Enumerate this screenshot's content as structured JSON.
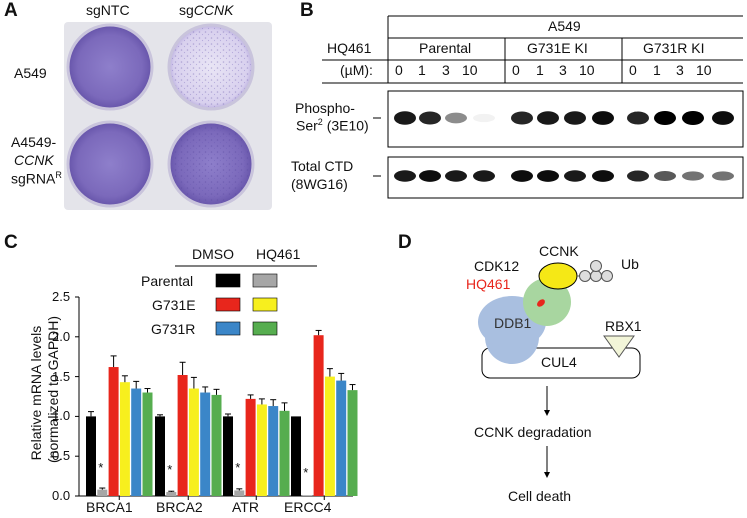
{
  "panels": {
    "a": "A",
    "b": "B",
    "c": "C",
    "d": "D"
  },
  "panel_a": {
    "col1": "sgNTC",
    "col2_prefix": "sg",
    "col2_gene": "CCNK",
    "row1": "A549",
    "row2_line1": "A4549-",
    "row2_line2": "CCNK",
    "row2_line3": "sgRNA",
    "row2_sup": "R"
  },
  "panel_b": {
    "cell_line": "A549",
    "compound": "HQ461",
    "unit": "(µM):",
    "groups": [
      "Parental",
      "G731E KI",
      "G731R KI"
    ],
    "doses": [
      "0",
      "1",
      "3",
      "10",
      "0",
      "1",
      "3",
      "10",
      "0",
      "1",
      "3",
      "10"
    ],
    "blot1_line1": "Phospho-",
    "blot1_line2a": "Ser",
    "blot1_sup": "2",
    "blot1_line2b": " (3E10)",
    "blot2_line1": "Total CTD",
    "blot2_line2": "(8WG16)",
    "phospho_intensity": [
      0.9,
      0.85,
      0.45,
      0.05,
      0.85,
      0.9,
      0.9,
      0.95,
      0.85,
      1.0,
      1.0,
      0.95
    ],
    "total_intensity": [
      0.9,
      0.95,
      0.9,
      0.9,
      0.95,
      0.95,
      0.9,
      0.95,
      0.85,
      0.65,
      0.55,
      0.55
    ]
  },
  "panel_c": {
    "legend_header_dmso": "DMSO",
    "legend_header_hq": "HQ461",
    "legend_rows": [
      "Parental",
      "G731E",
      "G731R"
    ],
    "star": "*"
  },
  "chart_data": {
    "type": "bar",
    "categories": [
      "BRCA1",
      "BRCA2",
      "ATR",
      "ERCC4"
    ],
    "ylabel_line1": "Relative mRNA levels",
    "ylabel_line2": "(normalized to GAPDH)",
    "ylim": [
      0,
      2.5
    ],
    "yticks": [
      "0.0",
      "0.5",
      "1.0",
      "1.5",
      "2.0",
      "2.5"
    ],
    "series": [
      {
        "name": "Parental DMSO",
        "color": "#000000",
        "values": [
          1.0,
          1.0,
          1.0,
          1.0
        ],
        "err": [
          0.06,
          0.02,
          0.03,
          0.0
        ]
      },
      {
        "name": "Parental HQ461",
        "color": "#a6a6a6",
        "values": [
          0.08,
          0.05,
          0.07,
          0.01
        ],
        "err": [
          0.02,
          0.01,
          0.02,
          0.0
        ]
      },
      {
        "name": "G731E DMSO",
        "color": "#e8261c",
        "values": [
          1.62,
          1.52,
          1.22,
          2.02
        ],
        "err": [
          0.14,
          0.16,
          0.05,
          0.06
        ]
      },
      {
        "name": "G731E HQ461",
        "color": "#f7ef1e",
        "values": [
          1.43,
          1.35,
          1.15,
          1.5
        ],
        "err": [
          0.08,
          0.14,
          0.07,
          0.1
        ]
      },
      {
        "name": "G731R DMSO",
        "color": "#3b86c8",
        "values": [
          1.35,
          1.3,
          1.13,
          1.45
        ],
        "err": [
          0.09,
          0.07,
          0.08,
          0.09
        ]
      },
      {
        "name": "G731R HQ461",
        "color": "#56ad4f",
        "values": [
          1.3,
          1.27,
          1.07,
          1.33
        ],
        "err": [
          0.05,
          0.07,
          0.1,
          0.07
        ]
      }
    ],
    "stars_on": "Parental HQ461"
  },
  "panel_d": {
    "cdk12": "CDK12",
    "ccnk": "CCNK",
    "ub": "Ub",
    "hq461": "HQ461",
    "ddb1": "DDB1",
    "rbx1": "RBX1",
    "cul4": "CUL4",
    "step1": "CCNK degradation",
    "step2": "Cell death"
  },
  "colors": {
    "hq461_red": "#e8261c",
    "ddb1_blue": "#a9bfe0",
    "cdk12_green": "#a8d6a0",
    "ccnk_yellow": "#f5e816",
    "plate_purple": "#7c6ab8"
  }
}
